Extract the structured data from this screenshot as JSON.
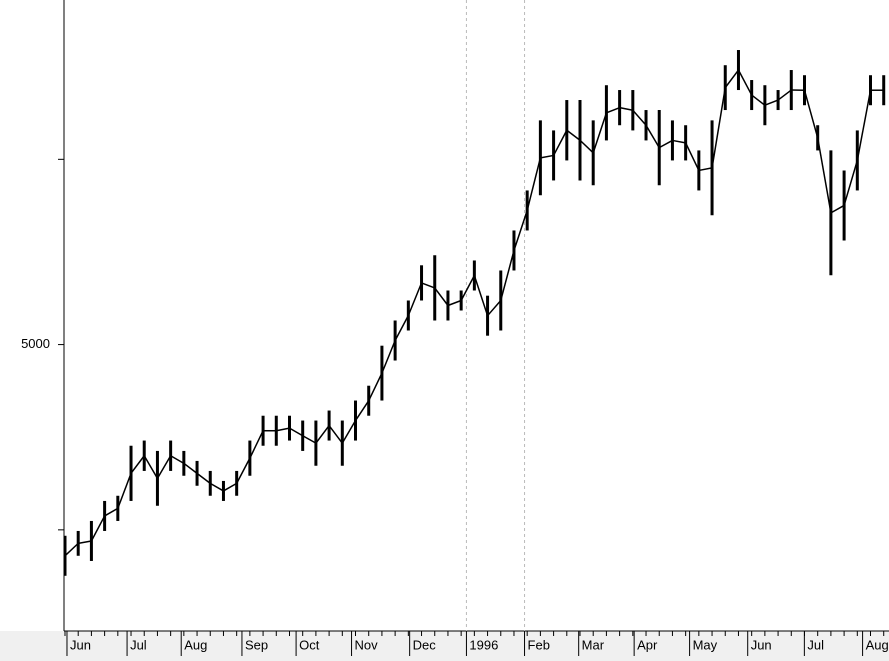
{
  "chart_data": {
    "type": "range_bars",
    "color": "#000000",
    "high": [
      4484,
      4497,
      4524,
      4578,
      4592,
      4727,
      4741,
      4713,
      4741,
      4713,
      4686,
      4659,
      4632,
      4659,
      4741,
      4808,
      4808,
      4808,
      4795,
      4795,
      4822,
      4795,
      4849,
      4889,
      4997,
      5065,
      5119,
      5214,
      5241,
      5146,
      5146,
      5227,
      5132,
      5200,
      5308,
      5416,
      5605,
      5578,
      5660,
      5660,
      5605,
      5700,
      5687,
      5687,
      5633,
      5633,
      5605,
      5592,
      5524,
      5605,
      5754,
      5795,
      5714,
      5700,
      5687,
      5741,
      5727,
      5592,
      5524,
      5470,
      5578,
      5727,
      5727
    ],
    "low": [
      4376,
      4430,
      4416,
      4497,
      4524,
      4578,
      4659,
      4565,
      4659,
      4646,
      4619,
      4592,
      4578,
      4592,
      4646,
      4727,
      4727,
      4741,
      4713,
      4673,
      4741,
      4673,
      4741,
      4808,
      4849,
      4957,
      5038,
      5119,
      5065,
      5065,
      5092,
      5146,
      5024,
      5038,
      5200,
      5308,
      5403,
      5443,
      5497,
      5443,
      5430,
      5551,
      5592,
      5578,
      5551,
      5430,
      5497,
      5497,
      5416,
      5349,
      5633,
      5687,
      5633,
      5592,
      5633,
      5633,
      5646,
      5524,
      5187,
      5281,
      5416,
      5646,
      5646
    ],
    "xlim": [
      0,
      62.4
    ],
    "xticks": [
      {
        "value": 0.15,
        "label": "Jun"
      },
      {
        "value": 4.7,
        "label": "Jul"
      },
      {
        "value": 8.8,
        "label": "Aug"
      },
      {
        "value": 13.4,
        "label": "Sep"
      },
      {
        "value": 17.5,
        "label": "Oct"
      },
      {
        "value": 21.7,
        "label": "Nov"
      },
      {
        "value": 26.1,
        "label": "Dec"
      },
      {
        "value": 30.4,
        "label": "1996"
      },
      {
        "value": 34.8,
        "label": "Feb"
      },
      {
        "value": 38.9,
        "label": "Mar"
      },
      {
        "value": 43.1,
        "label": "Apr"
      },
      {
        "value": 47.3,
        "label": "May"
      },
      {
        "value": 51.7,
        "label": "Jun"
      },
      {
        "value": 55.99,
        "label": "Jul"
      },
      {
        "value": 60.4,
        "label": "Aug"
      }
    ],
    "ylim": [
      4227,
      5930
    ],
    "yticks": [
      {
        "value": 4500,
        "label": null
      },
      5000,
      {
        "value": 5500,
        "label": null
      }
    ]
  }
}
